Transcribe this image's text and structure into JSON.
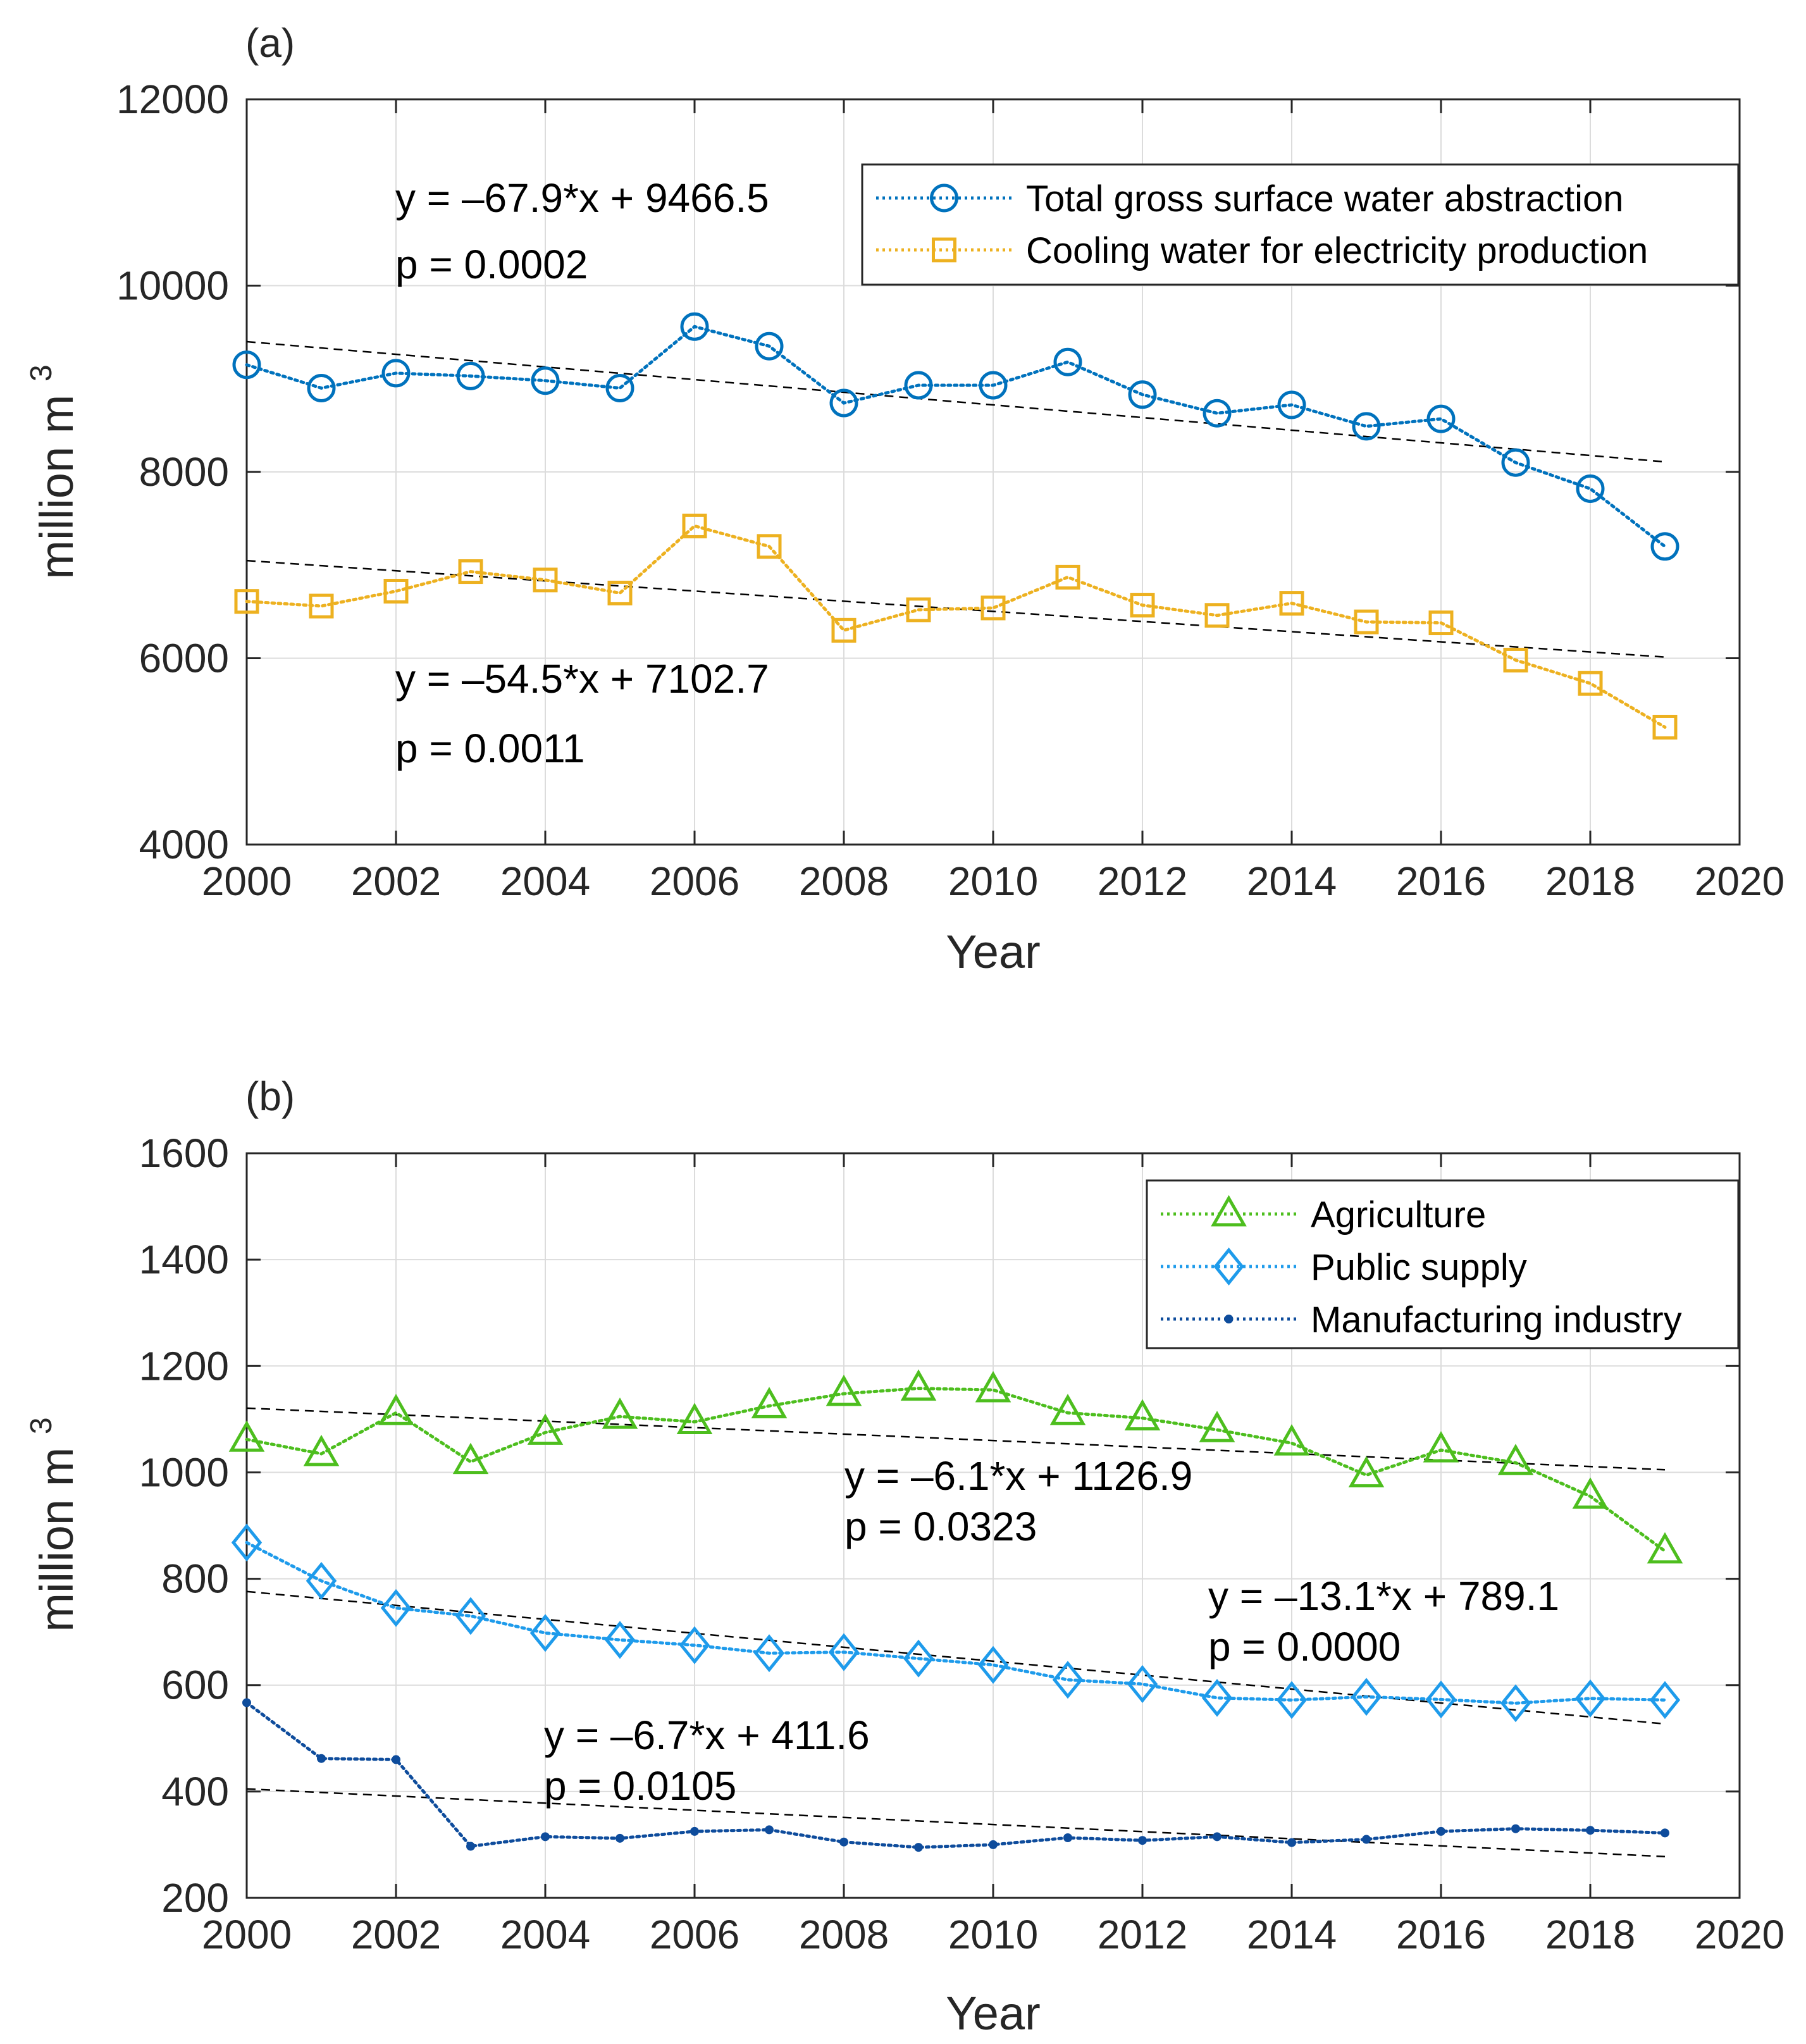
{
  "chart_data": [
    {
      "type": "line",
      "panel_label": "(a)",
      "xlabel": "Year",
      "ylabel": "million m",
      "ylabel_sup": "3",
      "xlim": [
        2000,
        2020
      ],
      "ylim": [
        4000,
        12000
      ],
      "xticks": [
        2000,
        2002,
        2004,
        2006,
        2008,
        2010,
        2012,
        2014,
        2016,
        2018,
        2020
      ],
      "yticks": [
        4000,
        6000,
        8000,
        10000,
        12000
      ],
      "grid": true,
      "legend_position": "top-right",
      "x": [
        2000,
        2001,
        2002,
        2003,
        2004,
        2005,
        2006,
        2007,
        2008,
        2009,
        2010,
        2011,
        2012,
        2013,
        2014,
        2015,
        2016,
        2017,
        2018,
        2019
      ],
      "series": [
        {
          "name": "Total gross surface water abstraction",
          "color": "#0072BD",
          "marker": "circle",
          "values": [
            9150,
            8900,
            9060,
            9030,
            8980,
            8900,
            9560,
            9350,
            8740,
            8930,
            8930,
            9180,
            8830,
            8630,
            8720,
            8490,
            8570,
            8100,
            7820,
            7200
          ],
          "trend": {
            "slope": -67.9,
            "intercept": 9466.5,
            "equation": "y = –67.9*x + 9466.5",
            "p": "p = 0.0002"
          }
        },
        {
          "name": "Cooling water for electricity production",
          "color": "#EDB120",
          "marker": "square",
          "values": [
            6610,
            6560,
            6720,
            6930,
            6840,
            6700,
            7420,
            7200,
            6300,
            6520,
            6540,
            6870,
            6570,
            6460,
            6590,
            6390,
            6380,
            5980,
            5730,
            5260
          ],
          "trend": {
            "slope": -54.5,
            "intercept": 7102.7,
            "equation": "y = –54.5*x + 7102.7",
            "p": "p = 0.0011"
          }
        }
      ]
    },
    {
      "type": "line",
      "panel_label": "(b)",
      "xlabel": "Year",
      "ylabel": "million m",
      "ylabel_sup": "3",
      "xlim": [
        2000,
        2020
      ],
      "ylim": [
        200,
        1600
      ],
      "xticks": [
        2000,
        2002,
        2004,
        2006,
        2008,
        2010,
        2012,
        2014,
        2016,
        2018,
        2020
      ],
      "yticks": [
        200,
        400,
        600,
        800,
        1000,
        1200,
        1400,
        1600
      ],
      "grid": true,
      "legend_position": "top-right",
      "x": [
        2000,
        2001,
        2002,
        2003,
        2004,
        2005,
        2006,
        2007,
        2008,
        2009,
        2010,
        2011,
        2012,
        2013,
        2014,
        2015,
        2016,
        2017,
        2018,
        2019
      ],
      "series": [
        {
          "name": "Agriculture",
          "color": "#4DBE1E",
          "marker": "triangle",
          "values": [
            1062,
            1035,
            1112,
            1020,
            1075,
            1105,
            1095,
            1125,
            1148,
            1158,
            1155,
            1112,
            1102,
            1080,
            1055,
            995,
            1042,
            1018,
            955,
            852
          ],
          "trend": {
            "slope": -6.1,
            "intercept": 1126.9,
            "equation": "y = –6.1*x + 1126.9",
            "p": "p = 0.0323"
          }
        },
        {
          "name": "Public supply",
          "color": "#1E9BEB",
          "marker": "diamond",
          "values": [
            868,
            796,
            745,
            730,
            698,
            685,
            675,
            660,
            662,
            650,
            638,
            610,
            602,
            576,
            572,
            578,
            573,
            566,
            575,
            572
          ],
          "trend": {
            "slope": -13.1,
            "intercept": 789.1,
            "equation": "y = –13.1*x + 789.1",
            "p": "p = 0.0000"
          }
        },
        {
          "name": "Manufacturing industry",
          "color": "#0E4C9C",
          "marker": "dot",
          "values": [
            567,
            462,
            460,
            297,
            315,
            312,
            325,
            328,
            305,
            295,
            300,
            313,
            308,
            315,
            304,
            310,
            325,
            330,
            327,
            322
          ],
          "trend": {
            "slope": -6.7,
            "intercept": 411.6,
            "equation": "y = –6.7*x + 411.6",
            "p": "p = 0.0105"
          }
        }
      ]
    }
  ]
}
